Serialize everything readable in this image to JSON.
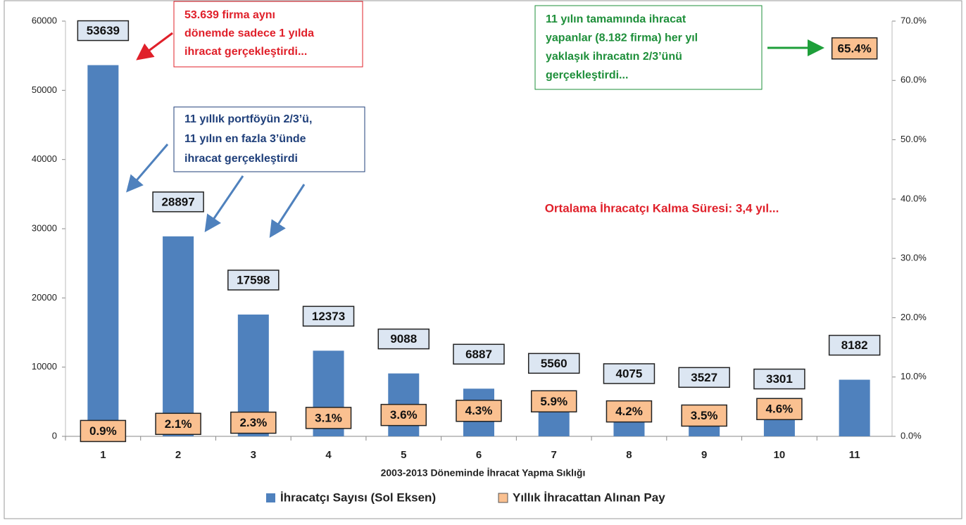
{
  "chart_data": {
    "type": "bar",
    "x_label": "2003-2013 Döneminde İhracat Yapma Sıklığı",
    "categories": [
      "1",
      "2",
      "3",
      "4",
      "5",
      "6",
      "7",
      "8",
      "9",
      "10",
      "11"
    ],
    "series": [
      {
        "name": "İhracatçı Sayısı (Sol Eksen)",
        "color": "#4f81bd",
        "values": [
          53639,
          28897,
          17598,
          12373,
          9088,
          6887,
          5560,
          4075,
          3527,
          3301,
          8182
        ]
      },
      {
        "name": "Yıllık İhracattan Alınan Pay",
        "color": "#fac090",
        "axis": "y2",
        "values": [
          0.9,
          2.1,
          2.3,
          3.1,
          3.6,
          4.3,
          5.9,
          4.2,
          3.5,
          4.6,
          65.4
        ],
        "value_labels": [
          "0.9%",
          "2.1%",
          "2.3%",
          "3.1%",
          "3.6%",
          "4.3%",
          "5.9%",
          "4.2%",
          "3.5%",
          "4.6%",
          "65.4%"
        ]
      }
    ],
    "ylim": [
      0,
      60000
    ],
    "yticks": [
      0,
      10000,
      20000,
      30000,
      40000,
      50000,
      60000
    ],
    "y2lim": [
      0,
      70
    ],
    "y2ticks": [
      {
        "value": 0,
        "label": "0.0%"
      },
      {
        "value": 10,
        "label": "10.0%"
      },
      {
        "value": 20,
        "label": "20.0%"
      },
      {
        "value": 30,
        "label": "30.0%"
      },
      {
        "value": 40,
        "label": "40.0%"
      },
      {
        "value": 50,
        "label": "50.0%"
      },
      {
        "value": 60,
        "label": "60.0%"
      },
      {
        "value": 70,
        "label": "70.0%"
      }
    ],
    "legend": "bottom",
    "annotations": [
      {
        "color": "#e0202a",
        "lines": [
          "53.639 firma aynı",
          "dönemde sadece 1 yılda",
          "ihracat gerçekleştirdi..."
        ]
      },
      {
        "color": "#1f3f7a",
        "lines": [
          "11 yıllık portföyün 2/3’ü,",
          "11 yılın en fazla 3’ünde",
          "ihracat gerçekleştirdi"
        ]
      },
      {
        "color": "#1e8f3a",
        "lines": [
          "11 yılın tamamında ihracat",
          "yapanlar (8.182 firma) her yıl",
          "yaklaşık ihracatın 2/3’ünü",
          "gerçekleştirdi..."
        ]
      },
      {
        "color": "#e0202a",
        "lines": [
          "Ortalama İhracatçı Kalma Süresi: 3,4 yıl..."
        ]
      }
    ]
  }
}
